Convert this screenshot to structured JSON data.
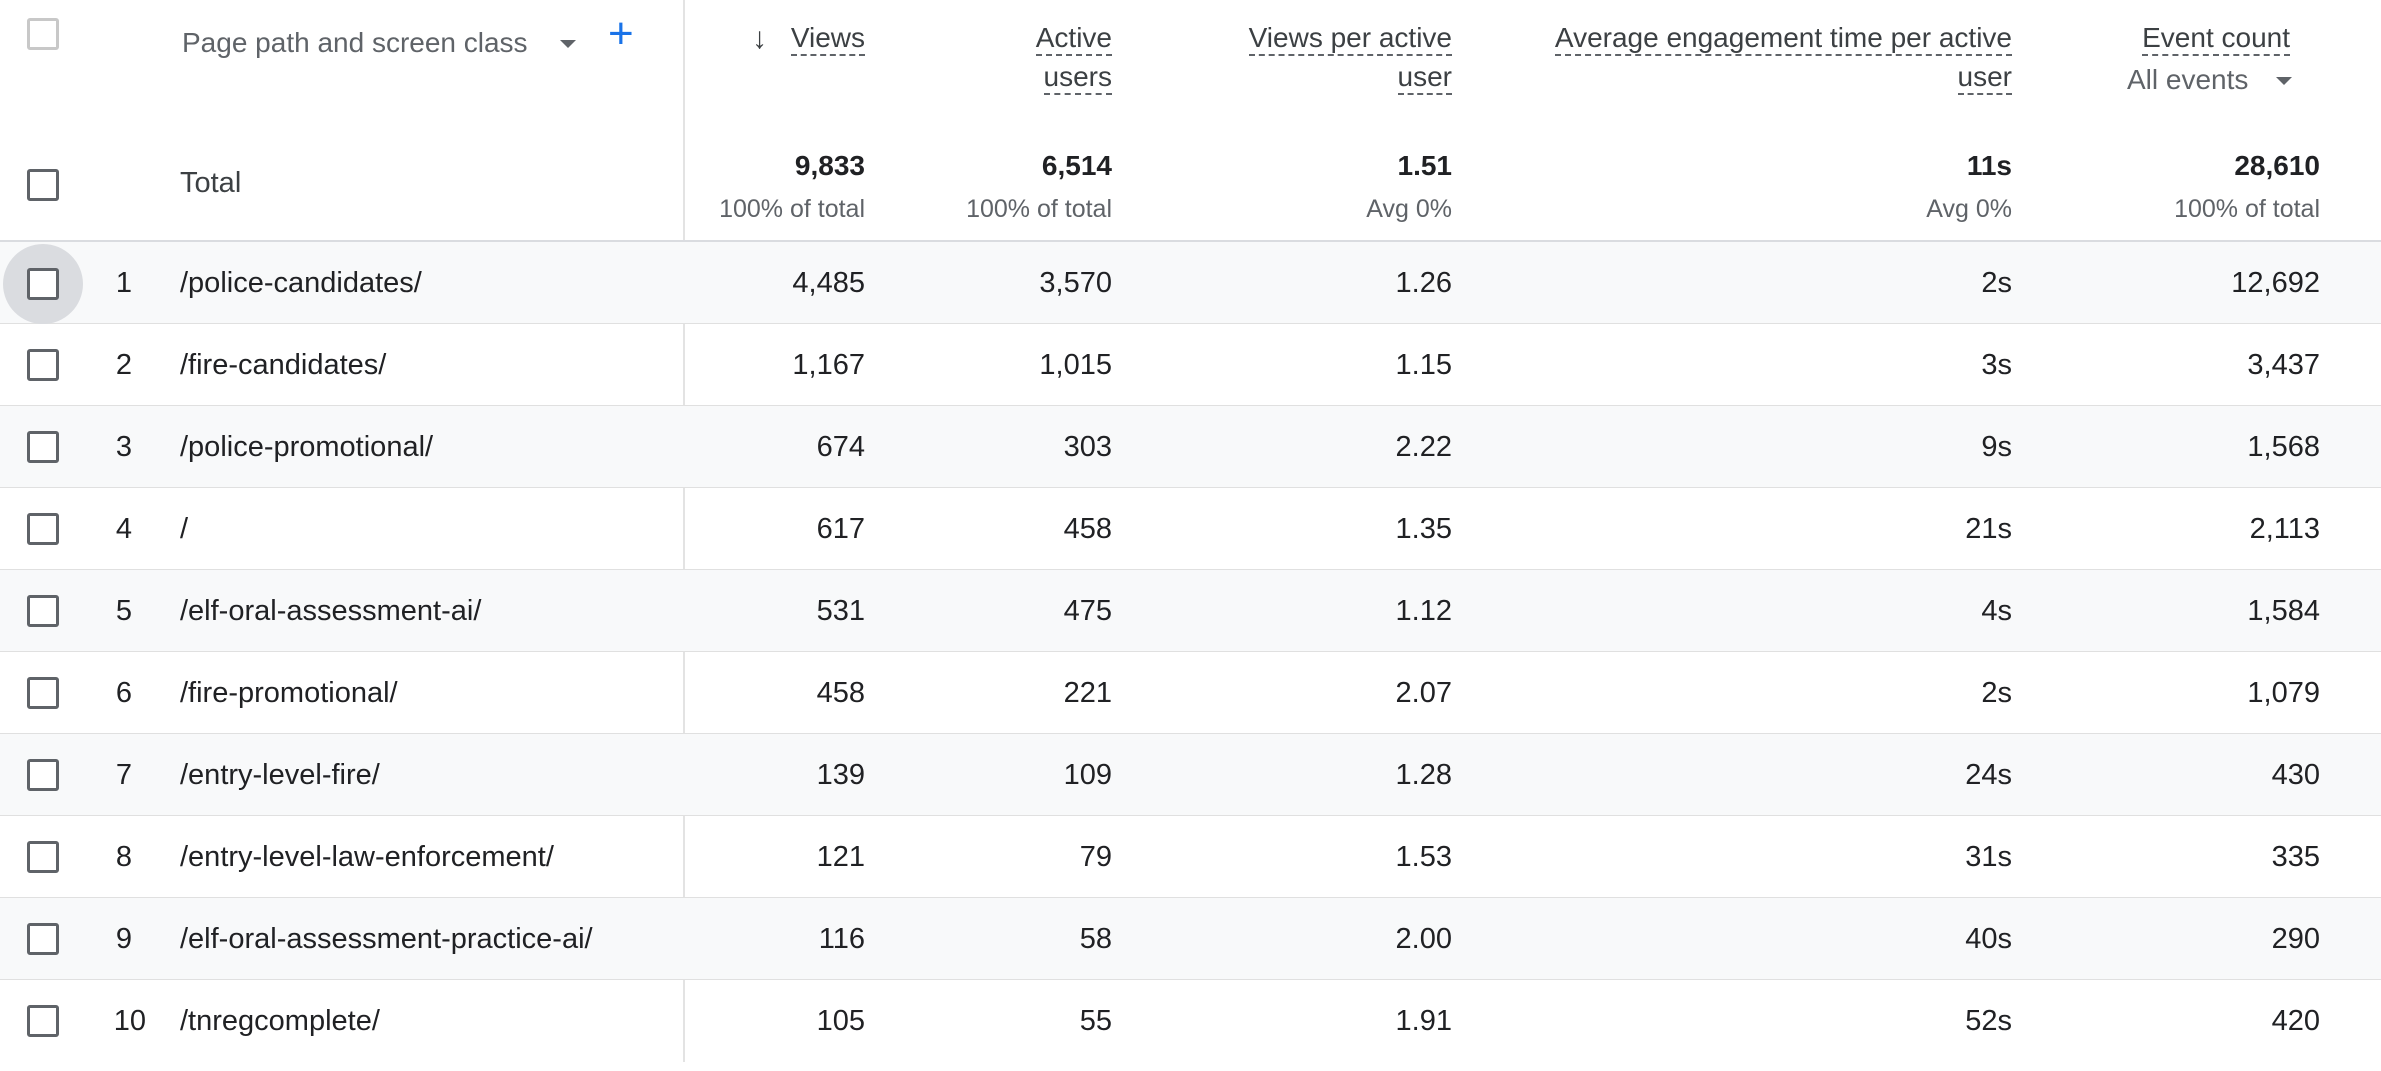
{
  "header": {
    "dimension_label": "Page path and screen class",
    "add_dimension": "+",
    "sort_arrow": "↓",
    "columns": {
      "views": "Views",
      "active_users_l1": "Active",
      "active_users_l2": "users",
      "views_per_user_l1": "Views per active",
      "views_per_user_l2": "user",
      "avg_engagement_l1": "Average engagement time per active",
      "avg_engagement_l2": "user",
      "event_count": "Event count",
      "event_filter": "All events"
    }
  },
  "totals": {
    "label": "Total",
    "views": "9,833",
    "views_pct": "100% of total",
    "active_users": "6,514",
    "active_users_pct": "100% of total",
    "views_per_user": "1.51",
    "views_per_user_note": "Avg 0%",
    "avg_engagement": "11s",
    "avg_engagement_note": "Avg 0%",
    "event_count": "28,610",
    "event_count_pct": "100% of total"
  },
  "rows": [
    {
      "idx": "1",
      "path": "/police-candidates/",
      "views": "4,485",
      "users": "3,570",
      "vpu": "1.26",
      "eng": "2s",
      "events": "12,692"
    },
    {
      "idx": "2",
      "path": "/fire-candidates/",
      "views": "1,167",
      "users": "1,015",
      "vpu": "1.15",
      "eng": "3s",
      "events": "3,437"
    },
    {
      "idx": "3",
      "path": "/police-promotional/",
      "views": "674",
      "users": "303",
      "vpu": "2.22",
      "eng": "9s",
      "events": "1,568"
    },
    {
      "idx": "4",
      "path": "/",
      "views": "617",
      "users": "458",
      "vpu": "1.35",
      "eng": "21s",
      "events": "2,113"
    },
    {
      "idx": "5",
      "path": "/elf-oral-assessment-ai/",
      "views": "531",
      "users": "475",
      "vpu": "1.12",
      "eng": "4s",
      "events": "1,584"
    },
    {
      "idx": "6",
      "path": "/fire-promotional/",
      "views": "458",
      "users": "221",
      "vpu": "2.07",
      "eng": "2s",
      "events": "1,079"
    },
    {
      "idx": "7",
      "path": "/entry-level-fire/",
      "views": "139",
      "users": "109",
      "vpu": "1.28",
      "eng": "24s",
      "events": "430"
    },
    {
      "idx": "8",
      "path": "/entry-level-law-enforcement/",
      "views": "121",
      "users": "79",
      "vpu": "1.53",
      "eng": "31s",
      "events": "335"
    },
    {
      "idx": "9",
      "path": "/elf-oral-assessment-practice-ai/",
      "views": "116",
      "users": "58",
      "vpu": "2.00",
      "eng": "40s",
      "events": "290"
    },
    {
      "idx": "10",
      "path": "/tnregcomplete/",
      "views": "105",
      "users": "55",
      "vpu": "1.91",
      "eng": "52s",
      "events": "420"
    }
  ]
}
